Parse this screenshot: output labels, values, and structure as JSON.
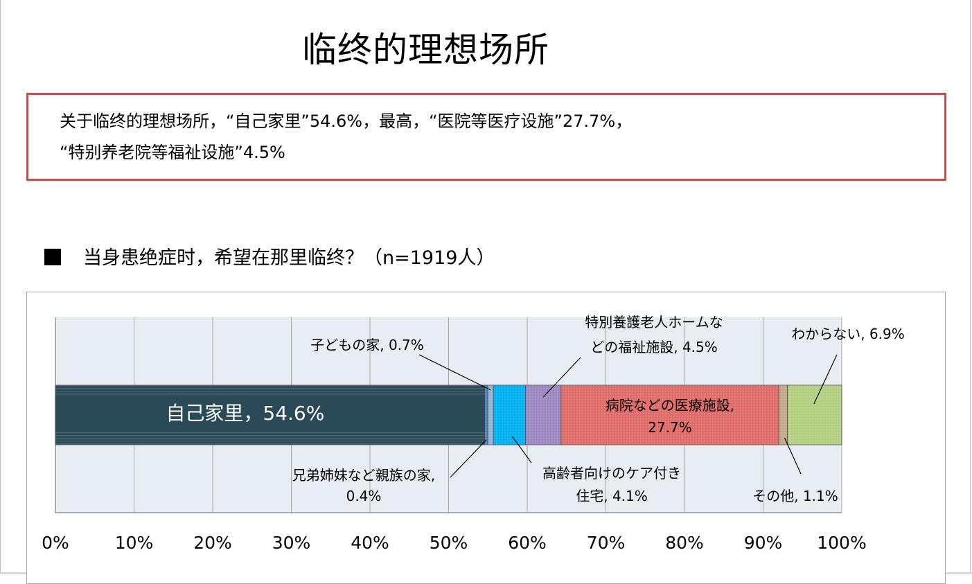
{
  "title": "临终的理想场所",
  "summary": {
    "line1": "关于临终的理想场所，“自己家里”54.6%，最高，“医院等医疗设施”27.7%，",
    "line2": "“特别养老院等福祉设施”4.5%"
  },
  "question": "当身患绝症时，希望在那里临终？（n=1919人）",
  "colors": {
    "summary_border": "#c0504d",
    "plot_background": "#e8edf4"
  },
  "chart_data": {
    "type": "bar",
    "orientation": "horizontal",
    "stacked": true,
    "xlim": [
      0,
      100
    ],
    "x_ticks": [
      "0%",
      "10%",
      "20%",
      "30%",
      "40%",
      "50%",
      "60%",
      "70%",
      "80%",
      "90%",
      "100%"
    ],
    "grid": true,
    "legend": "none",
    "series": [
      {
        "name": "自己家里",
        "value": 54.6,
        "label": "自己家里，54.6%",
        "color": "#2b4a57"
      },
      {
        "name": "兄弟姉妹など親族の家",
        "value": 0.4,
        "label_lines": [
          "兄弟姉妹など親族の家,",
          "0.4%"
        ],
        "color": "#4f81bd"
      },
      {
        "name": "子どもの家",
        "value": 0.7,
        "label": "子どもの家, 0.7%",
        "color": "#95b3d7"
      },
      {
        "name": "高齢者向けのケア付き住宅",
        "value": 4.1,
        "label_lines": [
          "高齢者向けのケア付き",
          "住宅, 4.1%"
        ],
        "color": "#00b0f0"
      },
      {
        "name": "特別養護老人ホームなどの福祉施設",
        "value": 4.5,
        "label_lines": [
          "特別養護老人ホームな",
          "どの福祉施設, 4.5%"
        ],
        "color": "#9c88c0"
      },
      {
        "name": "病院などの医療施設",
        "value": 27.7,
        "label_lines": [
          "病院などの医療施設,",
          "27.7%"
        ],
        "color": "#e06c6a"
      },
      {
        "name": "その他",
        "value": 1.1,
        "label": "その他, 1.1%",
        "color": "#c4a98a"
      },
      {
        "name": "わからない",
        "value": 6.9,
        "label": "わからない, 6.9%",
        "color": "#b3cf7f"
      }
    ]
  }
}
